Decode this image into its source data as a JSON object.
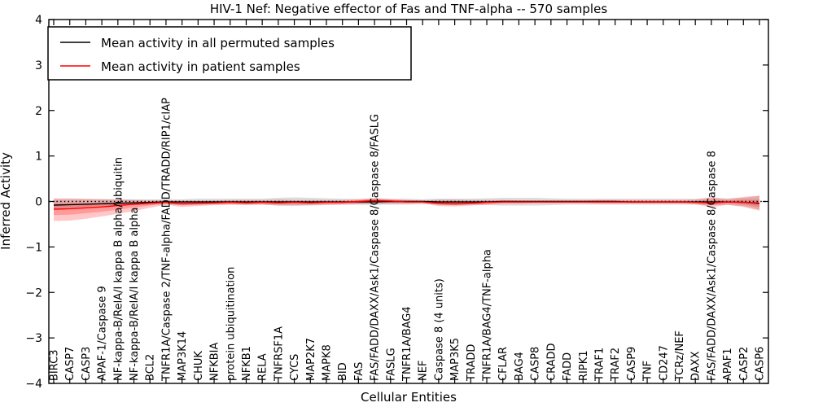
{
  "title": "HIV-1 Nef: Negative effector of Fas and TNF-alpha -- 570 samples",
  "axes": {
    "ylabel": "Inferred Activity",
    "xlabel": "Cellular Entities"
  },
  "legend": {
    "entries": [
      {
        "label": "Mean activity in all permuted samples",
        "color": "#000000"
      },
      {
        "label": "Mean activity in patient samples",
        "color": "#ff0000"
      }
    ]
  },
  "colors": {
    "permuted_line": "#000000",
    "patient_line": "#ff0000",
    "patient_band": "rgba(255,0,0,0.22)",
    "permuted_band": "rgba(128,128,128,0.28)",
    "zero_line": "#000000",
    "frame": "#000000"
  },
  "chart_data": {
    "type": "line",
    "title": "HIV-1 Nef: Negative effector of Fas and TNF-alpha -- 570 samples",
    "xlabel": "Cellular Entities",
    "ylabel": "Inferred Activity",
    "ylim": [
      -4,
      4
    ],
    "yticks": [
      -4,
      -3,
      -2,
      -1,
      0,
      1,
      2,
      3,
      4
    ],
    "grid": false,
    "legend_position": "upper left",
    "zero_line": {
      "y": 0,
      "style": "dotted"
    },
    "categories": [
      "BIRC3",
      "CASP7",
      "CASP3",
      "APAF-1/Caspase 9",
      "NF-kappa-B/RelA/I kappa B alpha/ubiquitin",
      "NF-kappa-B/RelA/I kappa B alpha",
      "BCL2",
      "TNFR1A/Caspase 2/TNF-alpha/FADD/TRADD/RIP1/cIAP",
      "MAP3K14",
      "CHUK",
      "NFKBIA",
      "protein ubiquitination",
      "NFKB1",
      "RELA",
      "TNFRSF1A",
      "CYCS",
      "MAP2K7",
      "MAPK8",
      "BID",
      "FAS",
      "FAS/FADD/DAXX/Ask1/Caspase 8/Caspase 8/FASLG",
      "FASLG",
      "TNFR1A/BAG4",
      "NEF",
      "Caspase 8 (4 units)",
      "MAP3K5",
      "TRADD",
      "TNFR1A/BAG4/TNF-alpha",
      "CFLAR",
      "BAG4",
      "CASP8",
      "CRADD",
      "FADD",
      "RIPK1",
      "TRAF1",
      "TRAF2",
      "CASP9",
      "TNF",
      "CD247",
      "TCRz/NEF",
      "DAXX",
      "FAS/FADD/DAXX/Ask1/Caspase 8/Caspase 8",
      "APAF1",
      "CASP2",
      "CASP6"
    ],
    "series": [
      {
        "name": "Mean activity in all permuted samples",
        "color": "#000000",
        "values": [
          -0.08,
          -0.07,
          -0.06,
          -0.05,
          -0.04,
          -0.03,
          -0.02,
          -0.01,
          -0.01,
          -0.01,
          -0.01,
          -0.01,
          -0.01,
          -0.01,
          -0.01,
          -0.01,
          -0.01,
          -0.01,
          -0.01,
          -0.01,
          -0.01,
          0.0,
          0.0,
          0.0,
          -0.01,
          -0.01,
          -0.01,
          -0.01,
          0.0,
          0.0,
          0.0,
          0.0,
          0.0,
          0.0,
          0.0,
          0.0,
          -0.01,
          -0.01,
          -0.01,
          -0.01,
          -0.01,
          -0.01,
          -0.01,
          -0.02,
          -0.04
        ]
      },
      {
        "name": "Mean activity in patient samples",
        "color": "#ff0000",
        "values": [
          -0.17,
          -0.16,
          -0.14,
          -0.12,
          -0.09,
          -0.06,
          -0.04,
          -0.02,
          -0.05,
          -0.04,
          -0.03,
          -0.02,
          -0.03,
          -0.02,
          -0.03,
          -0.02,
          -0.03,
          -0.02,
          -0.02,
          0.0,
          0.02,
          0.01,
          -0.01,
          -0.01,
          -0.04,
          -0.05,
          -0.04,
          -0.02,
          -0.01,
          -0.01,
          -0.01,
          -0.01,
          -0.01,
          -0.01,
          -0.01,
          -0.01,
          -0.01,
          -0.01,
          -0.01,
          -0.01,
          -0.02,
          -0.03,
          -0.01,
          -0.02,
          -0.05
        ]
      }
    ],
    "bands": [
      {
        "name": "permuted-confidence-band",
        "color": "rgba(128,128,128,0.28)",
        "hi": [
          0.05,
          0.05,
          0.05,
          0.05,
          0.05,
          0.05,
          0.05,
          0.05,
          0.05,
          0.06,
          0.06,
          0.06,
          0.06,
          0.06,
          0.08,
          0.09,
          0.08,
          0.07,
          0.06,
          0.06,
          0.06,
          0.06,
          0.06,
          0.05,
          0.06,
          0.06,
          0.06,
          0.07,
          0.08,
          0.08,
          0.08,
          0.07,
          0.06,
          0.06,
          0.06,
          0.06,
          0.06,
          0.06,
          0.06,
          0.06,
          0.06,
          0.07,
          0.07,
          0.08,
          0.12
        ],
        "lo": [
          -0.15,
          -0.14,
          -0.12,
          -0.1,
          -0.09,
          -0.08,
          -0.07,
          -0.07,
          -0.07,
          -0.07,
          -0.07,
          -0.07,
          -0.07,
          -0.07,
          -0.09,
          -0.1,
          -0.09,
          -0.08,
          -0.07,
          -0.07,
          -0.07,
          -0.07,
          -0.07,
          -0.06,
          -0.07,
          -0.08,
          -0.07,
          -0.08,
          -0.09,
          -0.09,
          -0.09,
          -0.08,
          -0.07,
          -0.07,
          -0.07,
          -0.07,
          -0.07,
          -0.07,
          -0.07,
          -0.07,
          -0.07,
          -0.08,
          -0.08,
          -0.1,
          -0.18
        ]
      },
      {
        "name": "patient-confidence-band-outer",
        "color": "rgba(255,0,0,0.22)",
        "hi": [
          0.07,
          0.07,
          0.06,
          0.05,
          0.04,
          0.03,
          0.02,
          0.03,
          0.02,
          0.02,
          0.02,
          0.03,
          0.03,
          0.03,
          0.04,
          0.03,
          0.03,
          0.03,
          0.03,
          0.04,
          0.08,
          0.05,
          0.03,
          0.02,
          0.04,
          0.04,
          0.03,
          0.03,
          0.03,
          0.02,
          0.02,
          0.02,
          0.02,
          0.02,
          0.03,
          0.03,
          0.03,
          0.03,
          0.03,
          0.03,
          0.04,
          0.1,
          0.05,
          0.1,
          0.13
        ],
        "lo": [
          -0.43,
          -0.42,
          -0.38,
          -0.33,
          -0.27,
          -0.21,
          -0.14,
          -0.07,
          -0.12,
          -0.1,
          -0.08,
          -0.07,
          -0.08,
          -0.07,
          -0.09,
          -0.08,
          -0.08,
          -0.07,
          -0.07,
          -0.06,
          -0.06,
          -0.05,
          -0.05,
          -0.04,
          -0.1,
          -0.11,
          -0.09,
          -0.07,
          -0.05,
          -0.05,
          -0.04,
          -0.04,
          -0.04,
          -0.04,
          -0.05,
          -0.05,
          -0.05,
          -0.05,
          -0.05,
          -0.05,
          -0.06,
          -0.13,
          -0.07,
          -0.12,
          -0.2
        ]
      }
    ]
  }
}
